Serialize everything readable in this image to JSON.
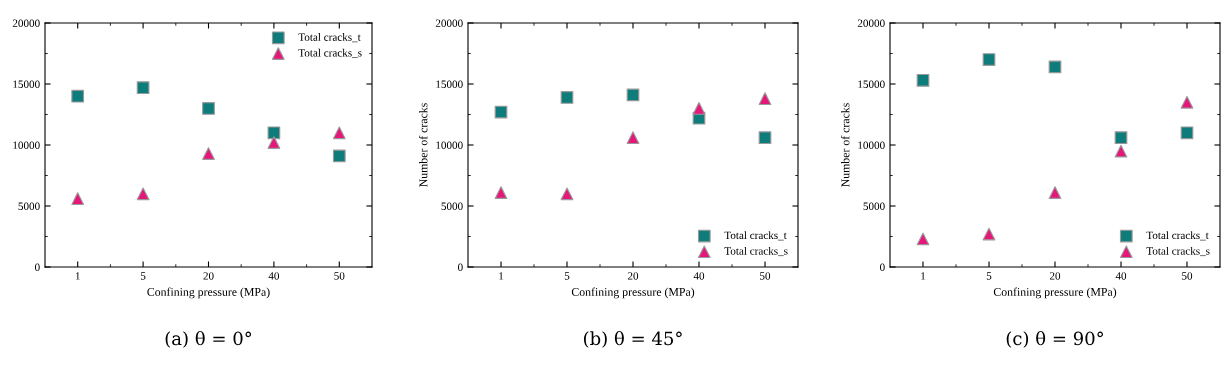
{
  "chart_data": [
    {
      "type": "scatter",
      "title": "(a) θ = 0°",
      "xlabel": "Confining pressure (MPa)",
      "categories": [
        "1",
        "5",
        "20",
        "40",
        "50"
      ],
      "ylim": [
        0,
        20000
      ],
      "yticks": [
        0,
        5000,
        10000,
        15000,
        20000
      ],
      "legend": "top right",
      "grid": false,
      "series": [
        {
          "name": "Total cracks_t",
          "color": "#0e7c7b",
          "marker": "square",
          "values": [
            14000,
            14700,
            13000,
            11000,
            9100
          ]
        },
        {
          "name": "Total cracks_s",
          "color": "#e6177a",
          "marker": "triangle",
          "values": [
            5600,
            6000,
            9300,
            10200,
            11000
          ]
        }
      ]
    },
    {
      "type": "scatter",
      "title": "(b) θ = 45°",
      "xlabel": "Confining pressure (MPa)",
      "ylabel": "Number of cracks",
      "categories": [
        "1",
        "5",
        "20",
        "40",
        "50"
      ],
      "ylim": [
        0,
        20000
      ],
      "yticks": [
        0,
        5000,
        10000,
        15000,
        20000
      ],
      "legend": "bottom right",
      "grid": false,
      "series": [
        {
          "name": "Total cracks_t",
          "color": "#0e7c7b",
          "marker": "square",
          "values": [
            12700,
            13900,
            14100,
            12200,
            10600
          ]
        },
        {
          "name": "Total cracks_s",
          "color": "#e6177a",
          "marker": "triangle",
          "values": [
            6100,
            6000,
            10600,
            13000,
            13800
          ]
        }
      ]
    },
    {
      "type": "scatter",
      "title": "(c) θ = 90°",
      "xlabel": "Confining pressure (MPa)",
      "ylabel": "Number of cracks",
      "categories": [
        "1",
        "5",
        "20",
        "40",
        "50"
      ],
      "ylim": [
        0,
        20000
      ],
      "yticks": [
        0,
        5000,
        10000,
        15000,
        20000
      ],
      "legend": "bottom right",
      "grid": false,
      "series": [
        {
          "name": "Total cracks_t",
          "color": "#0e7c7b",
          "marker": "square",
          "values": [
            15300,
            17000,
            16400,
            10600,
            11000
          ]
        },
        {
          "name": "Total cracks_s",
          "color": "#e6177a",
          "marker": "triangle",
          "values": [
            2300,
            2700,
            6100,
            9500,
            13500
          ]
        }
      ]
    }
  ]
}
